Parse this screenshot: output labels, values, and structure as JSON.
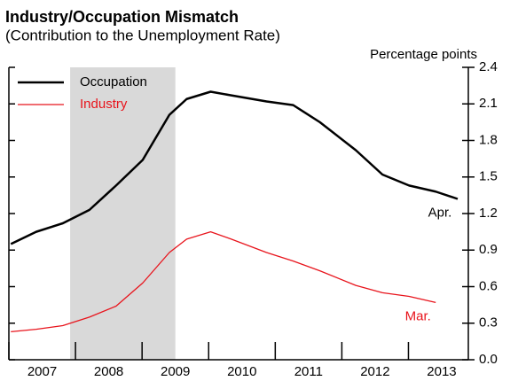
{
  "chart_data": {
    "type": "line",
    "title": "Industry/Occupation Mismatch",
    "subtitle": "(Contribution to the Unemployment Rate)",
    "y_axis_label": "Percentage points",
    "xlim": [
      2007.0,
      2013.9
    ],
    "xticks": [
      {
        "value": 2007.5,
        "label": "2007"
      },
      {
        "value": 2008.5,
        "label": "2008"
      },
      {
        "value": 2009.5,
        "label": "2009"
      },
      {
        "value": 2010.5,
        "label": "2010"
      },
      {
        "value": 2011.5,
        "label": "2011"
      },
      {
        "value": 2012.5,
        "label": "2012"
      },
      {
        "value": 2013.5,
        "label": "2013"
      }
    ],
    "ylim": [
      0,
      2.4
    ],
    "yticks": [
      {
        "value": 0,
        "label": "0.0"
      },
      0.3,
      0.6,
      0.9,
      1.2,
      1.5,
      1.8,
      2.1,
      2.4
    ],
    "y_axis_side": "right",
    "shade": [
      2007.92,
      2009.5
    ],
    "legend": "upper left",
    "x": [
      2007.03,
      2007.41,
      2007.81,
      2008.21,
      2008.61,
      2009.01,
      2009.41,
      2009.67,
      2010.03,
      2010.34,
      2010.87,
      2011.27,
      2011.67,
      2012.21,
      2012.61,
      2013.01,
      2013.41,
      2013.74
    ],
    "series": [
      {
        "name": "Occupation",
        "color": "#000000",
        "width": 2.5,
        "values": [
          0.95,
          1.05,
          1.12,
          1.23,
          1.43,
          1.64,
          2.01,
          2.14,
          2.2,
          2.17,
          2.12,
          2.09,
          1.95,
          1.72,
          1.52,
          1.43,
          1.38,
          1.32
        ],
        "end_label": "Apr."
      },
      {
        "name": "Industry",
        "color": "#e8141c",
        "width": 1.3,
        "values": [
          0.23,
          0.25,
          0.28,
          0.35,
          0.44,
          0.63,
          0.88,
          0.99,
          1.05,
          0.99,
          0.88,
          0.81,
          0.73,
          0.61,
          0.55,
          0.52,
          0.47,
          null
        ],
        "end_label": "Mar."
      }
    ]
  }
}
